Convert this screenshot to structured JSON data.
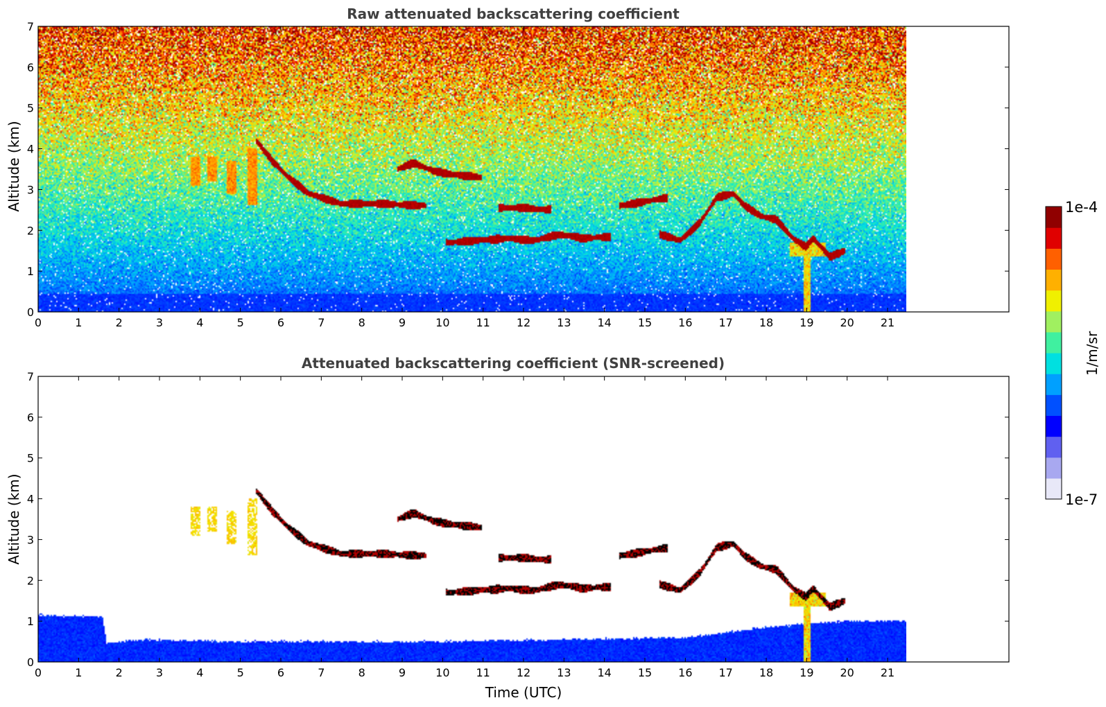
{
  "chart_data": [
    {
      "type": "heatmap",
      "title": "Raw attenuated backscattering coefficient",
      "xlabel": "",
      "ylabel": "Altitude (km)",
      "xlim": [
        0,
        24
      ],
      "ylim": [
        0,
        7
      ],
      "xticks": [
        0,
        1,
        2,
        3,
        4,
        5,
        6,
        7,
        8,
        9,
        10,
        11,
        12,
        13,
        14,
        15,
        16,
        17,
        18,
        19,
        20,
        21
      ],
      "yticks": [
        0,
        1,
        2,
        3,
        4,
        5,
        6,
        7
      ],
      "data_extent_x": [
        0,
        21.5
      ],
      "screened": false,
      "features": [
        {
          "kind": "layer",
          "points": [
            [
              5.4,
              4.2
            ],
            [
              5.8,
              3.7
            ],
            [
              6.2,
              3.3
            ],
            [
              6.7,
              2.9
            ],
            [
              7.5,
              2.65
            ],
            [
              8.5,
              2.65
            ],
            [
              9.6,
              2.6
            ]
          ]
        },
        {
          "kind": "layer",
          "points": [
            [
              8.9,
              3.5
            ],
            [
              9.3,
              3.65
            ],
            [
              9.8,
              3.45
            ],
            [
              10.4,
              3.35
            ],
            [
              11.0,
              3.3
            ]
          ]
        },
        {
          "kind": "layer",
          "points": [
            [
              11.4,
              2.55
            ],
            [
              12.0,
              2.55
            ],
            [
              12.7,
              2.5
            ]
          ]
        },
        {
          "kind": "layer",
          "points": [
            [
              14.4,
              2.6
            ],
            [
              15.0,
              2.7
            ],
            [
              15.6,
              2.8
            ]
          ]
        },
        {
          "kind": "layer",
          "points": [
            [
              10.1,
              1.7
            ],
            [
              10.9,
              1.75
            ],
            [
              11.6,
              1.8
            ],
            [
              12.3,
              1.75
            ],
            [
              12.9,
              1.9
            ],
            [
              13.5,
              1.8
            ],
            [
              14.2,
              1.85
            ]
          ]
        },
        {
          "kind": "layer",
          "points": [
            [
              15.4,
              1.9
            ],
            [
              15.9,
              1.75
            ],
            [
              16.4,
              2.2
            ],
            [
              16.8,
              2.8
            ],
            [
              17.2,
              2.9
            ],
            [
              17.5,
              2.6
            ],
            [
              17.9,
              2.35
            ],
            [
              18.3,
              2.25
            ],
            [
              18.7,
              1.8
            ],
            [
              19.0,
              1.6
            ],
            [
              19.2,
              1.8
            ],
            [
              19.6,
              1.35
            ],
            [
              20.0,
              1.5
            ]
          ]
        },
        {
          "kind": "fallstreak",
          "x": 3.9,
          "top": 3.8,
          "bottom": 3.1
        },
        {
          "kind": "fallstreak",
          "x": 4.3,
          "top": 3.8,
          "bottom": 3.2
        },
        {
          "kind": "fallstreak",
          "x": 4.8,
          "top": 3.7,
          "bottom": 2.9
        },
        {
          "kind": "fallstreak",
          "x": 5.3,
          "top": 4.0,
          "bottom": 2.6
        },
        {
          "kind": "rain",
          "x": 19.05,
          "top": 1.7,
          "bottom": 0
        }
      ]
    },
    {
      "type": "heatmap",
      "title": "Attenuated backscattering coefficient (SNR-screened)",
      "xlabel": "Time (UTC)",
      "ylabel": "Altitude (km)",
      "xlim": [
        0,
        24
      ],
      "ylim": [
        0,
        7
      ],
      "xticks": [
        0,
        1,
        2,
        3,
        4,
        5,
        6,
        7,
        8,
        9,
        10,
        11,
        12,
        13,
        14,
        15,
        16,
        17,
        18,
        19,
        20,
        21
      ],
      "yticks": [
        0,
        1,
        2,
        3,
        4,
        5,
        6,
        7
      ],
      "data_extent_x": [
        0,
        21.5
      ],
      "screened": true,
      "boundary_layer_top": [
        [
          0,
          1.15
        ],
        [
          1.6,
          1.1
        ],
        [
          1.7,
          0.45
        ],
        [
          2.5,
          0.55
        ],
        [
          5,
          0.5
        ],
        [
          10,
          0.5
        ],
        [
          13,
          0.55
        ],
        [
          16,
          0.6
        ],
        [
          18,
          0.85
        ],
        [
          20,
          1.0
        ],
        [
          21.5,
          1.0
        ]
      ]
    }
  ],
  "colorbar": {
    "label": "1/m/sr",
    "max_label": "1e-4",
    "min_label": "1e-7",
    "colors": [
      "#e8e8f8",
      "#a8a8f0",
      "#6060f0",
      "#0000ff",
      "#0050ff",
      "#00a0ff",
      "#00e0e0",
      "#40f0a0",
      "#a0f060",
      "#f0f000",
      "#ffb000",
      "#ff6000",
      "#e00000",
      "#900000"
    ]
  }
}
